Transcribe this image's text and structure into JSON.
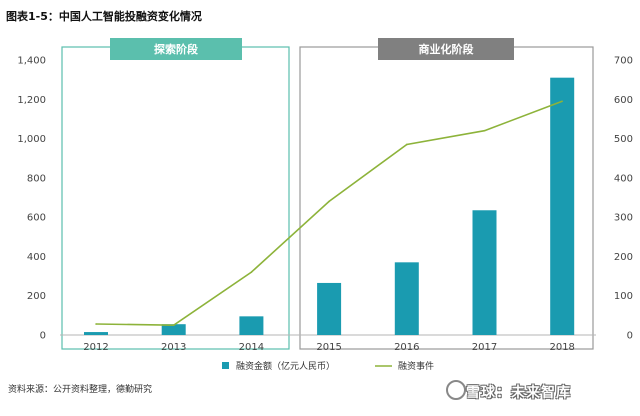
{
  "figure_title": "图表1-5：中国人工智能投融资变化情况",
  "source_note": "资料来源：公开资料整理，德勤研究",
  "watermark": "雪球：未来智库",
  "phases": [
    {
      "label": "探索阶段",
      "color": "#5bbfad"
    },
    {
      "label": "商业化阶段",
      "color": "#808080"
    }
  ],
  "chart_data": {
    "type": "bar+line",
    "categories": [
      "2012",
      "2013",
      "2014",
      "2015",
      "2016",
      "2017",
      "2018"
    ],
    "series": [
      {
        "name": "融资金额（亿元人民币）",
        "kind": "bar",
        "axis": "left",
        "color": "#1a9bb0",
        "values": [
          15,
          55,
          95,
          265,
          370,
          635,
          1310
        ]
      },
      {
        "name": "融资事件",
        "kind": "line",
        "axis": "right",
        "color": "#8db33a",
        "values": [
          28,
          25,
          160,
          340,
          485,
          520,
          595
        ]
      }
    ],
    "y_left": {
      "min": 0,
      "max": 1400,
      "ticks": [
        "0",
        "200",
        "400",
        "600",
        "800",
        "1,000",
        "1,200",
        "1,400"
      ]
    },
    "y_right": {
      "min": 0,
      "max": 700,
      "ticks": [
        "0",
        "100",
        "200",
        "300",
        "400",
        "500",
        "600",
        "700"
      ]
    },
    "grid": false,
    "legend_position": "bottom"
  }
}
